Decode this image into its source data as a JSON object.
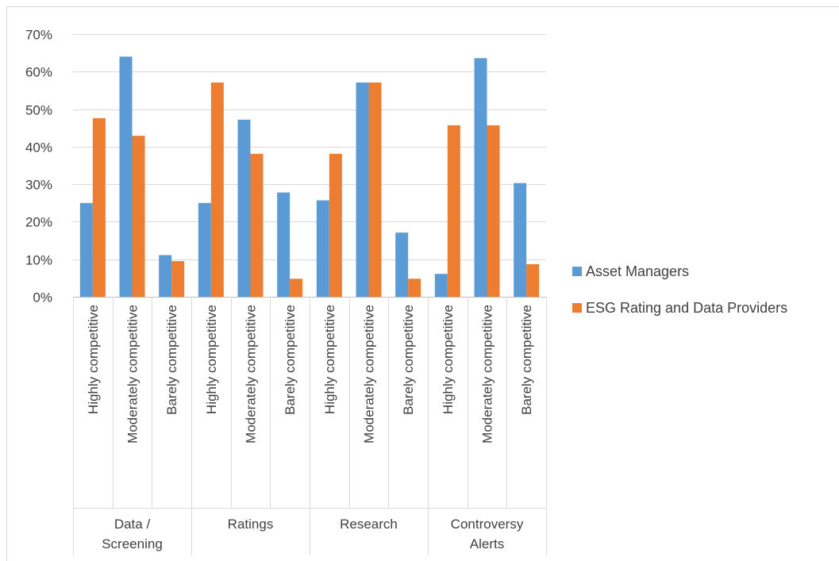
{
  "chart_data": {
    "type": "bar",
    "title": "",
    "xlabel": "",
    "ylabel": "",
    "ylim": [
      0,
      0.7
    ],
    "y_ticks": [
      "0%",
      "10%",
      "20%",
      "30%",
      "40%",
      "50%",
      "60%",
      "70%"
    ],
    "grid": true,
    "legend_position": "right",
    "groups": [
      {
        "label_lines": [
          "Data /",
          "Screening"
        ]
      },
      {
        "label_lines": [
          "Ratings"
        ]
      },
      {
        "label_lines": [
          "Research"
        ]
      },
      {
        "label_lines": [
          "Controversy",
          "Alerts"
        ]
      }
    ],
    "categories": [
      "Highly competitive",
      "Moderately competitive",
      "Barely competitive",
      "Highly competitive",
      "Moderately competitive",
      "Barely competitive",
      "Highly competitive",
      "Moderately competitive",
      "Barely competitive",
      "Highly competitive",
      "Moderately competitive",
      "Barely competitive"
    ],
    "series": [
      {
        "name": "Asset Managers",
        "color": "#5b9bd5",
        "values": [
          0.25,
          0.64,
          0.111,
          0.25,
          0.472,
          0.278,
          0.257,
          0.571,
          0.171,
          0.061,
          0.636,
          0.303
        ]
      },
      {
        "name": "ESG Rating and Data Providers",
        "color": "#ed7d31",
        "values": [
          0.476,
          0.429,
          0.095,
          0.571,
          0.381,
          0.048,
          0.381,
          0.571,
          0.048,
          0.457,
          0.457,
          0.087
        ]
      }
    ]
  }
}
